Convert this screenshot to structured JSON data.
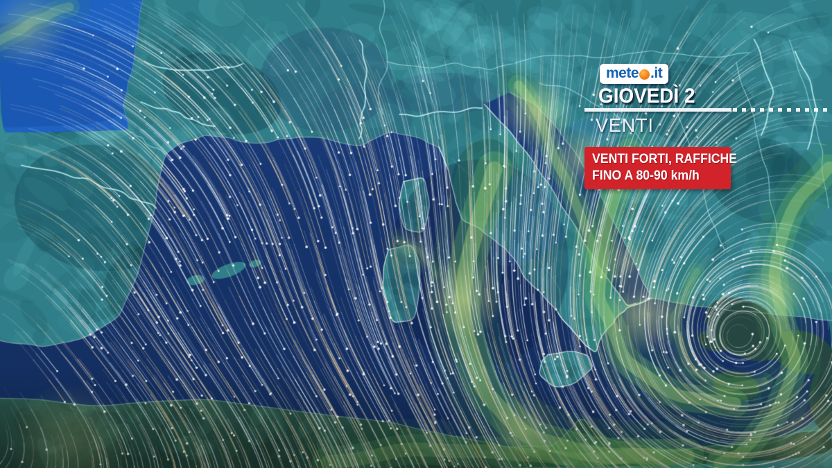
{
  "brand": {
    "logo_text_start": "mete",
    "logo_o_letter": "o",
    "logo_text_end": ".it",
    "logo_blue": "#1261b5",
    "logo_orange": "#f08018",
    "logo_bg": "#ffffff"
  },
  "header": {
    "date_label": "GIOVEDÌ 2",
    "section_label": "VENTI"
  },
  "alert": {
    "line1": "VENTI FORTI, RAFFICHE",
    "line2": "FINO A 80-90 km/h",
    "bg_color": "#d2232a",
    "text_color": "#ffffff"
  },
  "map": {
    "palette": {
      "sea_top": "#1c4488",
      "sea_mid": "#17356e",
      "sea_bottom": "#122b59",
      "atlantic": "#1f63c2",
      "atlantic_dark": "#1a55b0",
      "land": "#2f7e89",
      "land_light": "#6ecfd6",
      "land_dark": "#0d3c46",
      "slate": "#2b5b7a",
      "africa": "#2b564c",
      "africa_dark": "#203f37",
      "border": "#b5f1f5",
      "river": "#c3f4f6",
      "coast": "#e8f4f6",
      "wind_white": "#f0f6fa",
      "wind_warm": "#e3cba0",
      "gust_dark": "#3c8c50",
      "gust_mid": "#6ebe64",
      "gust_light": "#aad878",
      "gust_core": "#e6f096"
    }
  }
}
